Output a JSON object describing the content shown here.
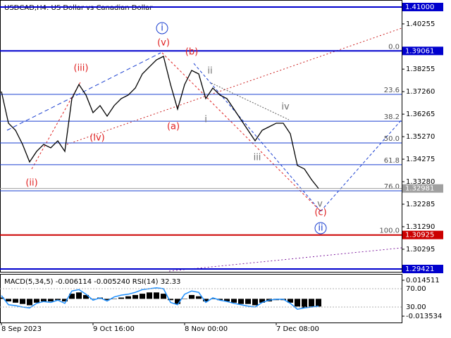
{
  "chart_data": {
    "type": "line",
    "title": "USDCAD,H4:  US Dollar vs Canadian Dollar",
    "color": "#000000",
    "categories": [
      "8 Sep 2023",
      null,
      null,
      null,
      null,
      null,
      null,
      null,
      null,
      null,
      null,
      null,
      null,
      "9 Oct 16:00",
      null,
      null,
      null,
      null,
      null,
      null,
      null,
      null,
      null,
      null,
      null,
      null,
      "8 Nov 00:00",
      null,
      null,
      null,
      null,
      null,
      null,
      null,
      null,
      null,
      null,
      null,
      null,
      "7 Dec 08:00",
      null,
      null,
      null,
      null,
      null,
      null
    ],
    "values": [
      1.37265,
      1.35865,
      1.35553,
      1.34931,
      1.34153,
      1.3462,
      1.34931,
      1.34775,
      1.35087,
      1.3462,
      1.36954,
      1.37576,
      1.3711,
      1.36331,
      1.36643,
      1.36176,
      1.36643,
      1.36954,
      1.3711,
      1.37421,
      1.38043,
      1.38355,
      1.38666,
      1.38821,
      1.37576,
      1.36487,
      1.37576,
      1.38199,
      1.38043,
      1.36954,
      1.37421,
      1.3711,
      1.36954,
      1.36487,
      1.3602,
      1.35553,
      1.35087,
      1.35553,
      1.35709,
      1.35865,
      1.35865,
      1.35398,
      1.33997,
      1.33842,
      1.33375,
      1.32981
    ],
    "ylim": [
      1.29328,
      1.41311
    ],
    "yticks": [
      1.40255,
      1.38255,
      {
        "value": 1.3726,
        "label": "1.37260"
      },
      1.36265,
      {
        "value": 1.3527,
        "label": "1.35270"
      },
      1.34275,
      {
        "value": 1.3328,
        "label": "1.33280"
      },
      1.32285,
      {
        "value": 1.3129,
        "label": "1.31290"
      },
      1.30295
    ],
    "grid": false,
    "price_levels": [
      {
        "value": 1.41,
        "label": "1.41000",
        "color": "#0000cd"
      },
      {
        "value": 1.39061,
        "label": "1.39061",
        "color": "#0000cd"
      },
      {
        "value": 1.32981,
        "label": "1.32981",
        "color": "#a0a0a0"
      },
      {
        "value": 1.30925,
        "label": "1.30925",
        "color": "#cc0000"
      },
      {
        "value": 1.29421,
        "label": "1.29421",
        "color": "#0000cd"
      }
    ],
    "fib_range": [
      1.39061,
      1.30925
    ],
    "fib_levels": [
      {
        "value": 0,
        "label": "0.0"
      },
      23.6,
      38.2,
      {
        "value": 50,
        "label": "50.0"
      },
      61.8,
      {
        "value": 76,
        "label": "76.0"
      },
      {
        "value": 100,
        "label": "100.0"
      }
    ],
    "annotations": [
      {
        "text": "(ii)",
        "color": "#e02020"
      },
      {
        "text": "(iii)",
        "color": "#e02020"
      },
      {
        "text": "(iv)",
        "color": "#e02020"
      },
      {
        "text": "(v)",
        "color": "#e02020"
      },
      {
        "text": "(a)",
        "color": "#e02020"
      },
      {
        "text": "(b)",
        "color": "#e02020"
      },
      {
        "text": "(c)",
        "color": "#e02020"
      },
      {
        "text": "i",
        "color": "#707070"
      },
      {
        "text": "ii",
        "color": "#707070"
      },
      {
        "text": "iii",
        "color": "#707070"
      },
      {
        "text": "iv",
        "color": "#707070"
      },
      {
        "text": "v",
        "color": "#707070"
      },
      {
        "text": "i",
        "color": "#1a3fd0"
      },
      {
        "text": "ii",
        "color": "#1a3fd0"
      }
    ],
    "indicator": {
      "title": "MACD(5,34,5) -0.006114 -0.005240 RSI(14) 32.33",
      "ylim": [
        -0.013534,
        0.014511
      ],
      "ticks": [
        0.014511,
        -0.013534
      ],
      "rsi_lim": [
        0,
        100
      ],
      "rsi_ticks": [
        {
          "value": 70,
          "label": "70.00"
        },
        {
          "value": 30,
          "label": "30.00"
        }
      ],
      "histogram": [
        0.001,
        -0.002,
        -0.003,
        -0.004,
        -0.005,
        -0.003,
        -0.002,
        -0.002,
        -0.001,
        -0.002,
        0.004,
        0.005,
        0.003,
        0.0,
        0.001,
        -0.001,
        0.0,
        0.001,
        0.002,
        0.003,
        0.004,
        0.005,
        0.005,
        0.004,
        -0.001,
        -0.004,
        0.0,
        0.003,
        0.002,
        -0.002,
        0.0,
        -0.001,
        -0.002,
        -0.003,
        -0.004,
        -0.004,
        -0.005,
        -0.003,
        -0.002,
        -0.001,
        -0.001,
        -0.003,
        -0.006,
        -0.007,
        -0.006,
        -0.006
      ],
      "rsi": [
        55,
        35,
        33,
        30,
        28,
        38,
        42,
        40,
        45,
        38,
        65,
        68,
        58,
        45,
        50,
        43,
        52,
        56,
        58,
        62,
        68,
        70,
        72,
        70,
        40,
        35,
        58,
        65,
        62,
        40,
        50,
        45,
        42,
        38,
        35,
        32,
        30,
        40,
        45,
        47,
        47,
        38,
        25,
        28,
        30,
        32
      ],
      "rsi_color": "#1e90ff"
    }
  }
}
